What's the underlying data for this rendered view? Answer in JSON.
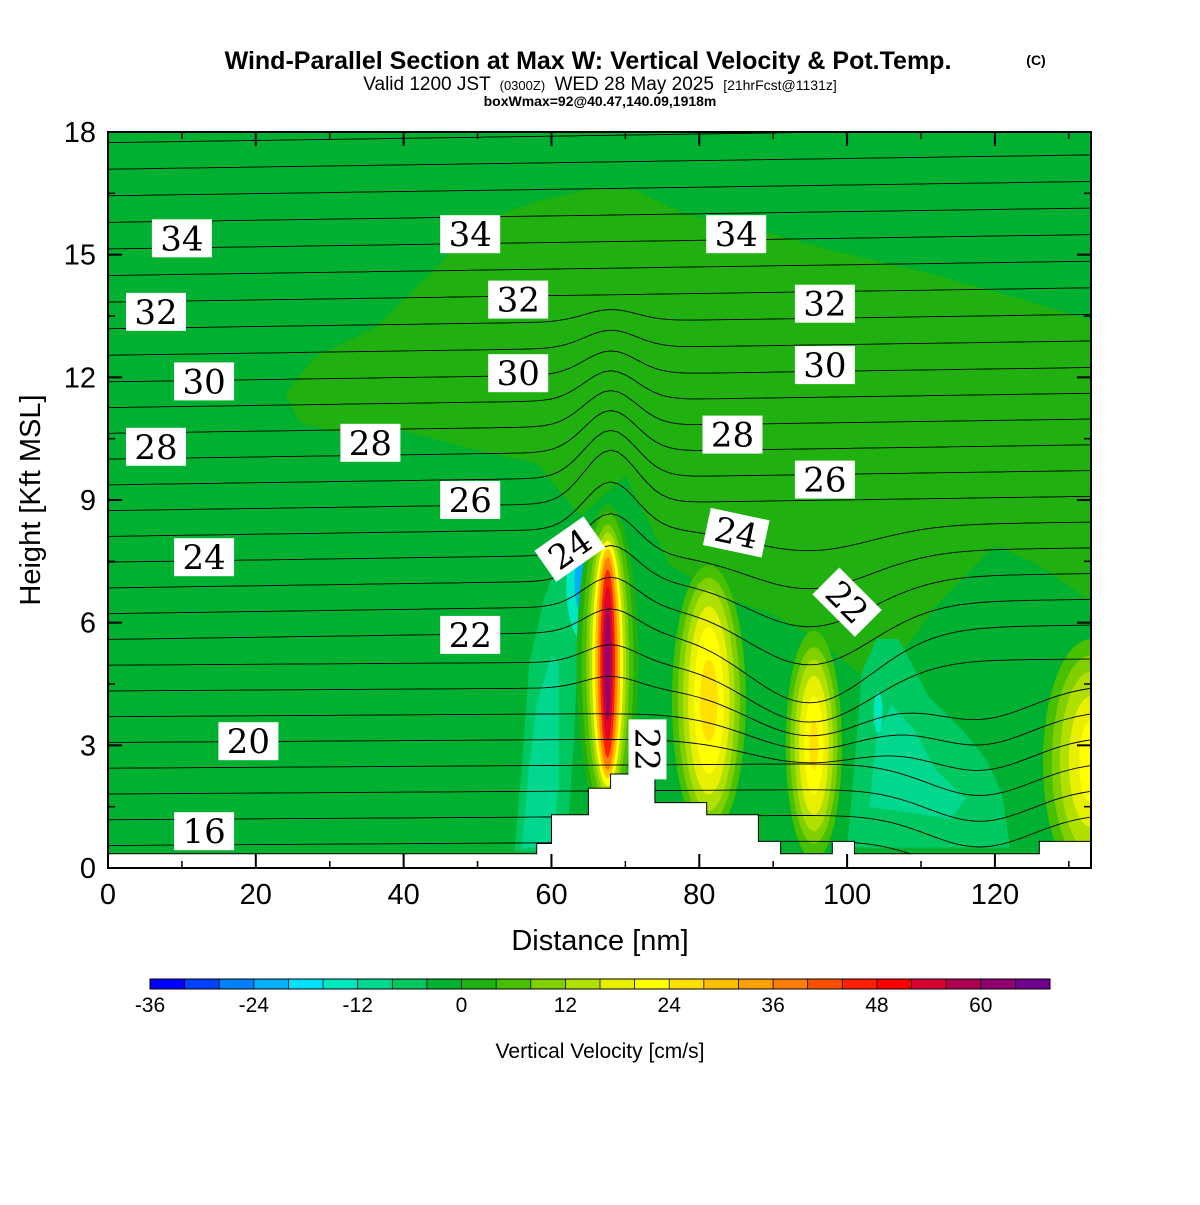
{
  "title": {
    "main": "Wind-Parallel Section at Max W: Vertical Velocity & Pot.Temp.",
    "copyright": "(C)",
    "valid_prefix": "Valid 1200 JST",
    "valid_utc": "(0300Z)",
    "valid_date": "WED 28 May 2025",
    "forecast": "[21hrFcst@1131z]",
    "box_info": "boxWmax=92@40.47,140.09,1918m"
  },
  "chart_data": {
    "type": "heatmap",
    "xlabel": "Distance [nm]",
    "ylabel": "Height [Kft MSL]",
    "xlim": [
      0,
      133
    ],
    "ylim": [
      0,
      18
    ],
    "x_ticks": [
      0,
      20,
      40,
      60,
      80,
      100,
      120
    ],
    "y_ticks": [
      0,
      3,
      6,
      9,
      12,
      15,
      18
    ],
    "colorbar": {
      "label": "Vertical Velocity [cm/s]",
      "range": [
        -36,
        68
      ],
      "step": 4,
      "tick_labels": [
        -36,
        -24,
        -12,
        0,
        12,
        24,
        36,
        48,
        60
      ],
      "colors": [
        "#0000ff",
        "#0040ff",
        "#0080ff",
        "#00b0ff",
        "#00e0ff",
        "#00e8c0",
        "#00d890",
        "#00c860",
        "#00b030",
        "#20b010",
        "#48c000",
        "#80d000",
        "#b0e000",
        "#e8f000",
        "#ffff00",
        "#ffe000",
        "#ffc000",
        "#ffa000",
        "#ff8000",
        "#ff5000",
        "#ff2000",
        "#ff0000",
        "#d80030",
        "#b00050",
        "#900070",
        "#700090"
      ]
    },
    "contour_field": "Potential temperature",
    "contour_labels": [
      {
        "text": "34",
        "x": 10,
        "y": 15.4,
        "angle": 0
      },
      {
        "text": "34",
        "x": 49,
        "y": 15.5,
        "angle": 0
      },
      {
        "text": "34",
        "x": 85,
        "y": 15.5,
        "angle": 0
      },
      {
        "text": "32",
        "x": 6.5,
        "y": 13.6,
        "angle": 0
      },
      {
        "text": "32",
        "x": 55.5,
        "y": 13.9,
        "angle": 0
      },
      {
        "text": "32",
        "x": 97,
        "y": 13.8,
        "angle": 0
      },
      {
        "text": "30",
        "x": 13,
        "y": 11.9,
        "angle": 0
      },
      {
        "text": "30",
        "x": 55.5,
        "y": 12.1,
        "angle": 0
      },
      {
        "text": "30",
        "x": 97,
        "y": 12.3,
        "angle": 0
      },
      {
        "text": "28",
        "x": 6.5,
        "y": 10.3,
        "angle": 0
      },
      {
        "text": "28",
        "x": 35.5,
        "y": 10.4,
        "angle": 0
      },
      {
        "text": "28",
        "x": 84.5,
        "y": 10.6,
        "angle": 0
      },
      {
        "text": "26",
        "x": 49,
        "y": 9.0,
        "angle": 0
      },
      {
        "text": "26",
        "x": 97,
        "y": 9.5,
        "angle": 0
      },
      {
        "text": "24",
        "x": 13,
        "y": 7.6,
        "angle": 0
      },
      {
        "text": "24",
        "x": 62.5,
        "y": 7.8,
        "angle": -35
      },
      {
        "text": "24",
        "x": 85,
        "y": 8.2,
        "angle": 12
      },
      {
        "text": "22",
        "x": 49,
        "y": 5.7,
        "angle": 0
      },
      {
        "text": "22",
        "x": 100,
        "y": 6.5,
        "angle": 45
      },
      {
        "text": "22",
        "x": 73,
        "y": 2.9,
        "angle": 90
      },
      {
        "text": "20",
        "x": 19,
        "y": 3.1,
        "angle": 0
      },
      {
        "text": "16",
        "x": 13,
        "y": 0.9,
        "angle": 0
      }
    ]
  }
}
